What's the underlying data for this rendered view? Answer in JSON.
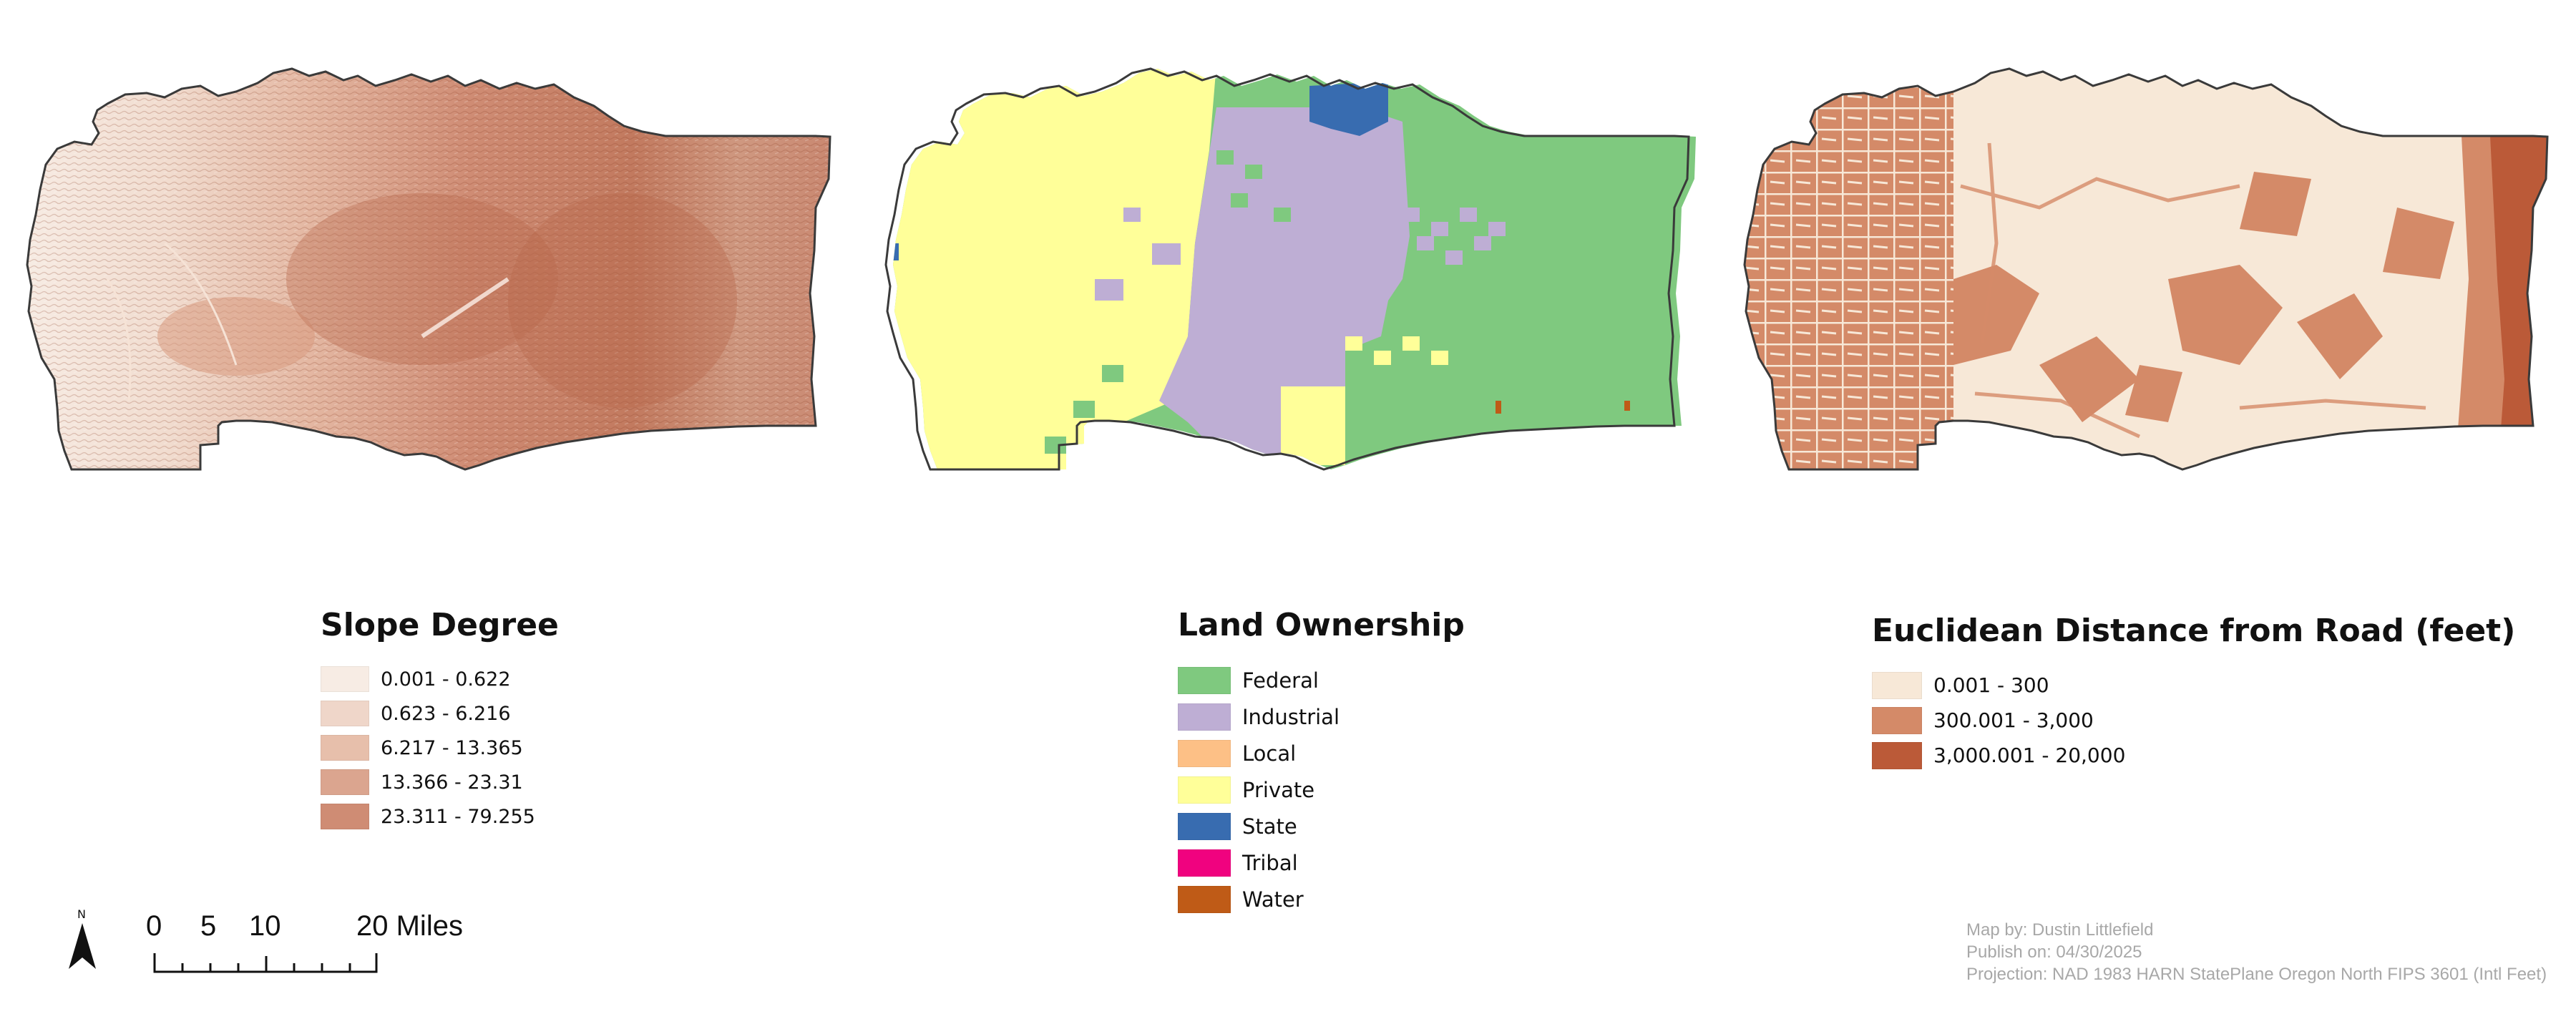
{
  "colors": {
    "county_outline": "#3a3a3a",
    "slope_low": "#f7ece4",
    "slope_high": "#b45a3c",
    "background": "#ffffff"
  },
  "maps": [
    {
      "id": "slope",
      "kind": "slope-degree-raster"
    },
    {
      "id": "ownership",
      "kind": "land-ownership-raster"
    },
    {
      "id": "road_distance",
      "kind": "euclidean-distance-raster"
    }
  ],
  "legends": {
    "slope": {
      "title": "Slope Degree",
      "items": [
        {
          "label": "0.001 - 0.622",
          "color": "#f7ece4"
        },
        {
          "label": "0.623 - 6.216",
          "color": "#efd6c9"
        },
        {
          "label": "6.217 - 13.365",
          "color": "#e7bfab"
        },
        {
          "label": "13.366 - 23.31",
          "color": "#dba58f"
        },
        {
          "label": "23.311 - 79.255",
          "color": "#cf8c74"
        }
      ]
    },
    "ownership": {
      "title": "Land Ownership",
      "items": [
        {
          "label": "Federal",
          "color": "#7fc97f"
        },
        {
          "label": "Industrial",
          "color": "#beaed4"
        },
        {
          "label": "Local",
          "color": "#fdc086"
        },
        {
          "label": "Private",
          "color": "#ffff99"
        },
        {
          "label": "State",
          "color": "#386cb0"
        },
        {
          "label": "Tribal",
          "color": "#f0027f"
        },
        {
          "label": "Water",
          "color": "#bf5b17"
        }
      ]
    },
    "road_distance": {
      "title": "Euclidean Distance from Road (feet)",
      "items": [
        {
          "label": "0.001 - 300",
          "color": "#f7e8d7"
        },
        {
          "label": "300.001 - 3,000",
          "color": "#d48a68"
        },
        {
          "label": "3,000.001 - 20,000",
          "color": "#bb5a38"
        }
      ]
    }
  },
  "north_arrow": {
    "label": "N"
  },
  "scale_bar": {
    "labels": [
      "0",
      "5",
      "10",
      "20 Miles"
    ]
  },
  "credits": {
    "author": "Map by: Dustin Littlefield",
    "published": "Publish on: 04/30/2025",
    "projection": "Projection: NAD 1983 HARN StatePlane Oregon North FIPS 3601 (Intl Feet)"
  }
}
